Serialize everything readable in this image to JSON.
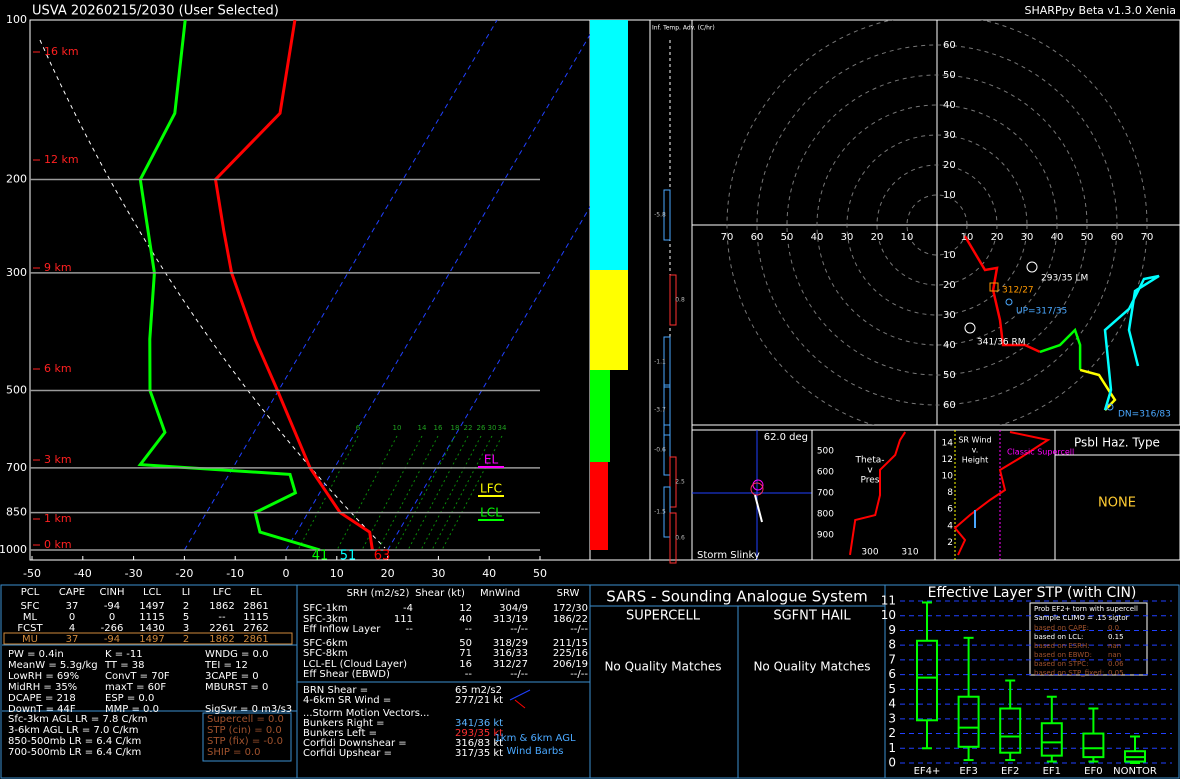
{
  "header": {
    "station": "USVA  20260215/2030  (User Selected)",
    "version": "SHARPpy Beta v1.3.0 Xenia"
  },
  "skewt": {
    "pressure_ticks": [
      100,
      200,
      300,
      500,
      700,
      850,
      1000
    ],
    "temperature_ticks": [
      -50,
      -40,
      -30,
      -20,
      -10,
      0,
      10,
      20,
      30,
      40,
      50
    ],
    "height_labels": [
      "16 km",
      "12 km",
      "9 km",
      "6 km",
      "3 km",
      "1 km",
      "0 km"
    ],
    "mixing_ratio_labels": [
      6,
      10,
      14,
      16,
      18,
      22,
      26,
      30,
      34
    ],
    "temperature": {
      "color": "#ff0000",
      "p": [
        1000,
        925,
        850,
        700,
        500,
        400,
        300,
        250,
        200,
        150,
        100
      ],
      "t": [
        17,
        14.4,
        6.3,
        -4.8,
        -20.2,
        -30.6,
        -42.9,
        -49.3,
        -56.9,
        -51.9,
        -59.8
      ]
    },
    "dewpoint": {
      "color": "#00ff00",
      "p": [
        1000,
        925,
        850,
        780,
        720,
        690,
        600,
        500,
        400,
        300,
        200,
        150,
        100
      ],
      "t": [
        6.7,
        -7.2,
        -10.4,
        -4.8,
        -8,
        -38.6,
        -37.5,
        -45.3,
        -51.3,
        -58.1,
        -71.7,
        -72.6,
        -81.4
      ]
    },
    "level_labels": [
      {
        "text": "EL",
        "color": "#ff00ff"
      },
      {
        "text": "LFC",
        "color": "#ffff00"
      },
      {
        "text": "LCL",
        "color": "#00ff00"
      }
    ],
    "surface_values": [
      {
        "value": 41,
        "color": "#00ff00"
      },
      {
        "value": 51,
        "color": "#00ffff"
      },
      {
        "value": 63,
        "color": "#ff0000"
      }
    ]
  },
  "temp_advection": {
    "title": "Inf. Temp. Adv. (C/hr)",
    "values": [
      -5.8,
      0.8,
      -1.1,
      -3.7,
      -0.6,
      2.5,
      -1.5,
      0.6
    ]
  },
  "hodograph": {
    "rings": [
      10,
      20,
      30,
      40,
      50,
      60,
      70
    ],
    "segments": [
      {
        "color": "#ff0000",
        "u": [
          9.3,
          16,
          20,
          18.7,
          21,
          22,
          29.3,
          34.3
        ],
        "v": [
          -3.7,
          -15,
          -14.3,
          -21.7,
          -31.7,
          -40,
          -40,
          -42.3
        ]
      },
      {
        "color": "#00ff00",
        "u": [
          34.3,
          41,
          46,
          47.7,
          47.7
        ],
        "v": [
          -42.3,
          -40,
          -35,
          -40,
          -48.3
        ]
      },
      {
        "color": "#ffff00",
        "u": [
          47.7,
          54,
          59.3,
          56
        ],
        "v": [
          -48.3,
          -50,
          -58.3,
          -61.7
        ]
      },
      {
        "color": "#00ffff",
        "u": [
          56,
          58,
          56,
          64,
          69,
          74,
          66,
          64,
          67
        ],
        "v": [
          -61.7,
          -55,
          -35,
          -28,
          -18,
          -17,
          -22,
          -35,
          -47
        ]
      }
    ],
    "annotations": [
      {
        "text": "293/35 LM",
        "color": "#ffffff"
      },
      {
        "text": "312/27",
        "color": "#ff9900"
      },
      {
        "text": "UP=317/35",
        "color": "#4aa8ff"
      },
      {
        "text": "341/36 RM",
        "color": "#ffffff"
      },
      {
        "text": "DN=316/83",
        "color": "#4aa8ff"
      }
    ]
  },
  "slinky": {
    "angle": "62.0 deg",
    "title": "Storm Slinky"
  },
  "theta_e": {
    "title": [
      "Theta-",
      "v",
      "Pres"
    ],
    "pressure_ticks": [
      500,
      600,
      700,
      800,
      900
    ],
    "theta_ticks": [
      300,
      310
    ],
    "p": [
      995,
      829,
      805,
      710,
      590,
      519,
      448,
      410
    ],
    "theta": [
      295,
      296.3,
      301.3,
      302.5,
      302.5,
      306.3,
      307.5,
      308.8
    ]
  },
  "sr_wind": {
    "title": [
      "SR Wind",
      "v.",
      "Height"
    ],
    "note": "Classic Supercell",
    "height_ticks": [
      2,
      4,
      6,
      8,
      10,
      12,
      14
    ]
  },
  "hazard": {
    "title": "Psbl Haz. Type",
    "value": "NONE"
  },
  "parcels": {
    "headers": [
      "PCL",
      "CAPE",
      "CINH",
      "LCL",
      "LI",
      "LFC",
      "EL"
    ],
    "rows": [
      [
        "SFC",
        37,
        -94,
        1497,
        2,
        1862,
        2861
      ],
      [
        "ML",
        0,
        0,
        1115,
        5,
        "--",
        1115
      ],
      [
        "FCST",
        4,
        -266,
        1430,
        3,
        2261,
        2762
      ],
      [
        "MU",
        37,
        -94,
        1497,
        2,
        1862,
        2861
      ]
    ]
  },
  "indices": [
    [
      "PW = 0.4in",
      "K = -11",
      "WNDG = 0.0"
    ],
    [
      "MeanW = 5.3g/kg",
      "TT = 38",
      "TEI = 12"
    ],
    [
      "LowRH = 69%",
      "ConvT = 70F",
      "3CAPE = 0"
    ],
    [
      "MidRH = 35%",
      "maxT = 60F",
      "MBURST = 0"
    ],
    [
      "DCAPE = 218",
      "ESP = 0.0"
    ],
    [
      "DownT = 44F",
      "MMP = 0.0",
      "SigSvr = 0 m3/s3"
    ]
  ],
  "lapse_rates": [
    "Sfc-3km AGL LR = 7.8 C/km",
    "3-6km AGL LR = 7.0 C/km",
    "850-500mb LR = 6.4 C/km",
    "700-500mb LR = 6.4 C/km"
  ],
  "composites": [
    "Supercell = 0.0",
    "STP (cin) = 0.0",
    "STP (fix) = -0.0",
    "SHIP = 0.0"
  ],
  "kinematics": {
    "headers": [
      "SRH (m2/s2)",
      "Shear (kt)",
      "MnWind",
      "SRW"
    ],
    "rows": [
      [
        "SFC-1km",
        -4,
        12,
        "304/9",
        "172/30"
      ],
      [
        "SFC-3km",
        111,
        40,
        "313/19",
        "186/22"
      ],
      [
        "Eff Inflow Layer",
        "--",
        "--",
        "--/--",
        "--/--"
      ],
      [
        "SFC-6km",
        null,
        50,
        "318/29",
        "211/15"
      ],
      [
        "SFC-8km",
        null,
        71,
        "316/33",
        "225/16"
      ],
      [
        "LCL-EL (Cloud Layer)",
        null,
        16,
        "312/27",
        "206/19"
      ],
      [
        "Eff Shear (EBWD)",
        null,
        "--",
        "--/--",
        "--/--"
      ]
    ],
    "extra": [
      {
        "label": "BRN Shear =",
        "value": "65 m2/s2",
        "color": "#ffffff"
      },
      {
        "label": "4-6km SR Wind =",
        "value": "277/21 kt",
        "color": "#ffffff"
      }
    ],
    "motion_title": "...Storm Motion Vectors...",
    "motion": [
      {
        "label": "Bunkers Right =",
        "value": "341/36 kt",
        "color": "#5ab4ff"
      },
      {
        "label": "Bunkers Left =",
        "value": "293/35 kt",
        "color": "#ff3030"
      },
      {
        "label": "Corfidi Downshear =",
        "value": "316/83 kt",
        "color": "#ffffff"
      },
      {
        "label": "Corfidi Upshear =",
        "value": "317/35 kt",
        "color": "#ffffff"
      }
    ],
    "barb_note": [
      "1km & 6km AGL",
      "Wind Barbs"
    ]
  },
  "sars": {
    "title": "SARS - Sounding Analogue System",
    "supercell": "SUPERCELL",
    "hail": "SGFNT HAIL",
    "supercell_result": "No Quality Matches",
    "hail_result": "No Quality Matches"
  },
  "stp": {
    "title": "Effective Layer STP (with CIN)",
    "ylim": [
      0,
      11
    ],
    "yticks": [
      0,
      1,
      2,
      3,
      4,
      5,
      6,
      7,
      8,
      9,
      10,
      11
    ],
    "categories": [
      "EF4+",
      "EF3",
      "EF2",
      "EF1",
      "EF0",
      "NONTOR"
    ],
    "color": "#00ff00",
    "boxes": [
      {
        "low": 1.0,
        "q1": 2.9,
        "median": 5.8,
        "q3": 8.3,
        "high": 10.9
      },
      {
        "low": 0.2,
        "q1": 1.1,
        "median": 2.4,
        "q3": 4.5,
        "high": 8.5
      },
      {
        "low": 0.2,
        "q1": 0.7,
        "median": 1.8,
        "q3": 3.7,
        "high": 5.6
      },
      {
        "low": 0.1,
        "q1": 0.5,
        "median": 1.4,
        "q3": 2.7,
        "high": 4.5
      },
      {
        "low": 0.1,
        "q1": 0.4,
        "median": 1.0,
        "q3": 2.0,
        "high": 3.7
      },
      {
        "low": 0,
        "q1": 0.1,
        "median": 0.4,
        "q3": 0.8,
        "high": 1.8
      }
    ],
    "info_title": [
      "Prob EF2+ torn with supercell",
      "Sample CLIMO = .15 sigtor"
    ],
    "info_rows": [
      {
        "label": "based on CAPE:",
        "value": "0.0",
        "color": "#a0522d"
      },
      {
        "label": "based on LCL:",
        "value": "0.15",
        "color": "#ffffff"
      },
      {
        "label": "based on ESRH:",
        "value": "nan",
        "color": "#a0522d"
      },
      {
        "label": "based on EBWD:",
        "value": "nan",
        "color": "#a0522d"
      },
      {
        "label": "based on STPC:",
        "value": "0.06",
        "color": "#a0522d"
      },
      {
        "label": "based on STP_fixed:",
        "value": "0.05",
        "color": "#a0522d"
      }
    ]
  }
}
